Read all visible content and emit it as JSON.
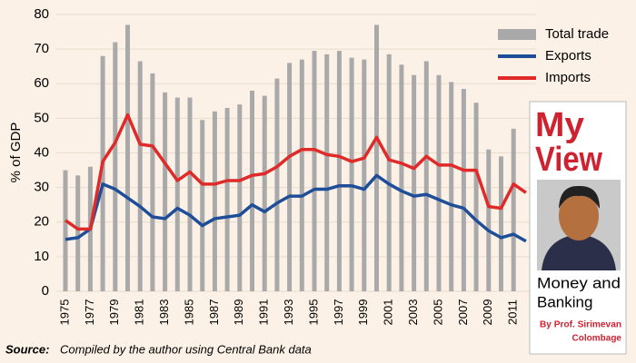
{
  "chart_data": {
    "type": "bar-line",
    "y_label": "% of GDP",
    "categories": [
      "1975",
      null,
      "1977",
      null,
      "1979",
      null,
      "1981",
      null,
      "1983",
      null,
      "1985",
      null,
      "1987",
      null,
      "1989",
      null,
      "1991",
      null,
      "1993",
      null,
      "1995",
      null,
      "1997",
      null,
      "1999",
      null,
      "2001",
      null,
      "2003",
      null,
      "2005",
      null,
      "2007",
      null,
      "2009",
      null,
      "2011",
      null
    ],
    "series": [
      {
        "name": "Total trade",
        "kind": "bar",
        "color": "#a9a9a9",
        "values": [
          35,
          33.5,
          36,
          68,
          72,
          77,
          66.5,
          63,
          57.5,
          56,
          56,
          49.5,
          52,
          53,
          54,
          58,
          56.5,
          61.5,
          66,
          67,
          69.5,
          68.5,
          69.5,
          67.5,
          67,
          77,
          68.5,
          65.5,
          62.5,
          66.5,
          62.5,
          60.5,
          58.5,
          54.5,
          41,
          39,
          47,
          null
        ]
      },
      {
        "name": "Exports",
        "kind": "line",
        "color": "#1f4e99",
        "values": [
          15,
          15.5,
          18,
          31,
          29.5,
          27,
          24.5,
          21.5,
          21,
          24,
          22,
          19,
          21,
          21.5,
          22,
          25,
          23,
          25.5,
          27.5,
          27.5,
          29.5,
          29.5,
          30.5,
          30.5,
          29.5,
          33.5,
          31,
          29,
          27.5,
          28,
          26.5,
          25,
          24,
          20.5,
          17.5,
          15.5,
          16.5,
          14.5
        ]
      },
      {
        "name": "Imports",
        "kind": "line",
        "color": "#e02a2a",
        "values": [
          20.5,
          18,
          18,
          37.5,
          43,
          51,
          42.5,
          42,
          37,
          32,
          34.5,
          31,
          31,
          32,
          32,
          33.5,
          34,
          36,
          39,
          41,
          41,
          39.5,
          39,
          37.5,
          38.5,
          44.5,
          38,
          37,
          35.5,
          39,
          36.5,
          36.5,
          35,
          35,
          24.5,
          24,
          31,
          28.5
        ]
      }
    ],
    "ylim": [
      0,
      80
    ],
    "yticks": [
      0,
      10,
      20,
      30,
      40,
      50,
      60,
      70,
      80
    ],
    "grid": true,
    "legend": "top-right",
    "source_label": "Source:",
    "source": "Compiled by the author using Central Bank data"
  },
  "inset": {
    "title_1": "My",
    "title_2": "View",
    "column_1": "Money and",
    "column_2": "Banking",
    "byline_1": "By Prof. Sirimevan",
    "byline_2": "Colombage"
  }
}
